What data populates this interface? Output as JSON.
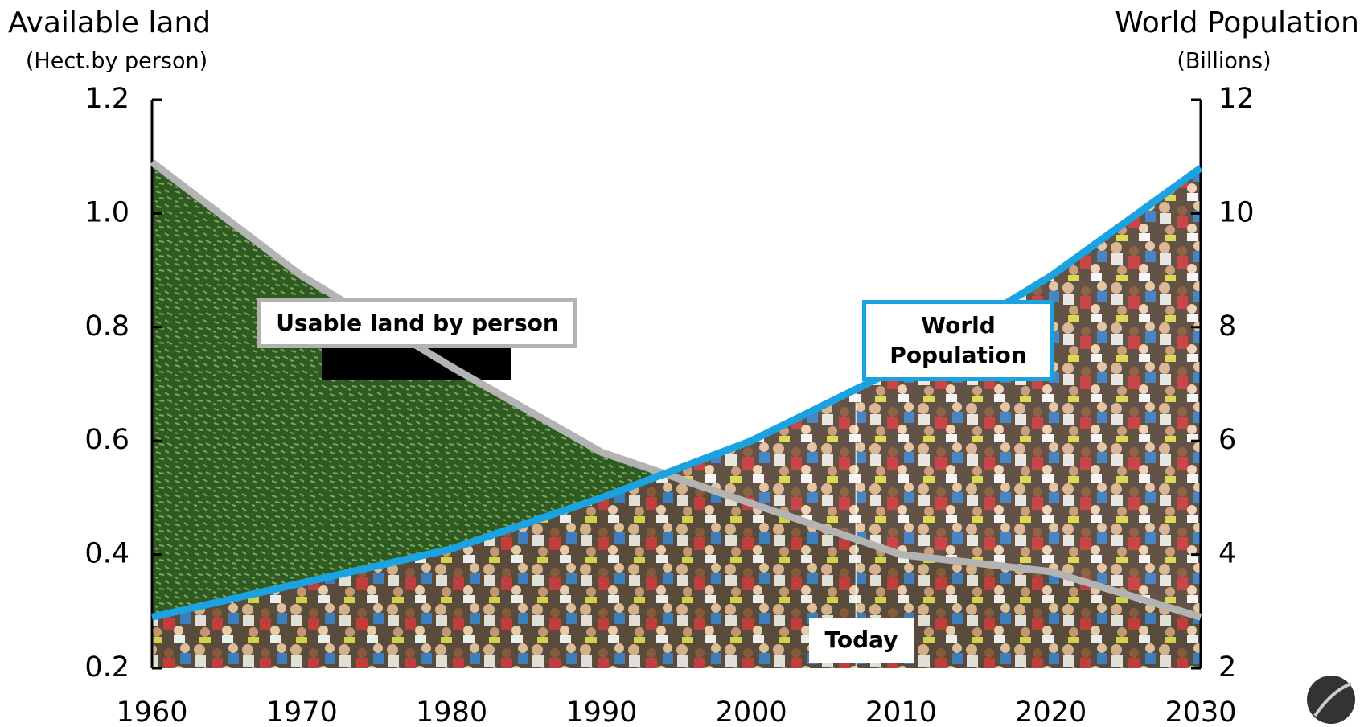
{
  "chart_data": {
    "type": "line",
    "y_title": "Available land",
    "y_subtitle": "(Hect.by person)",
    "y2_title": "World Population",
    "y2_subtitle": "(Billions)",
    "x": [
      1960,
      1970,
      1980,
      1990,
      2000,
      2010,
      2020,
      2030
    ],
    "xlim": [
      1960,
      2030
    ],
    "xticks": [
      1960,
      1970,
      1980,
      1990,
      2000,
      2010,
      2020,
      2030
    ],
    "ylim": [
      0.2,
      1.2
    ],
    "yticks": [
      0.2,
      0.4,
      0.6,
      0.8,
      {
        "value": 1,
        "label": "1.0"
      },
      1.2
    ],
    "y2lim": [
      2,
      12
    ],
    "y2ticks": [
      2,
      4,
      6,
      8,
      10,
      12
    ],
    "series": [
      {
        "name": "Usable land by person",
        "color": "#b3b3b3",
        "values": [
          1.09,
          0.89,
          0.73,
          0.58,
          0.49,
          0.4,
          0.37,
          0.29
        ]
      },
      {
        "name": "World Population",
        "color": "#1aa3e0",
        "axis": "y2",
        "values": [
          2.9,
          3.5,
          4.1,
          5.0,
          6.0,
          7.3,
          8.9,
          10.8
        ]
      }
    ],
    "annotations": [
      {
        "text": "Today",
        "x": 2007
      }
    ]
  }
}
